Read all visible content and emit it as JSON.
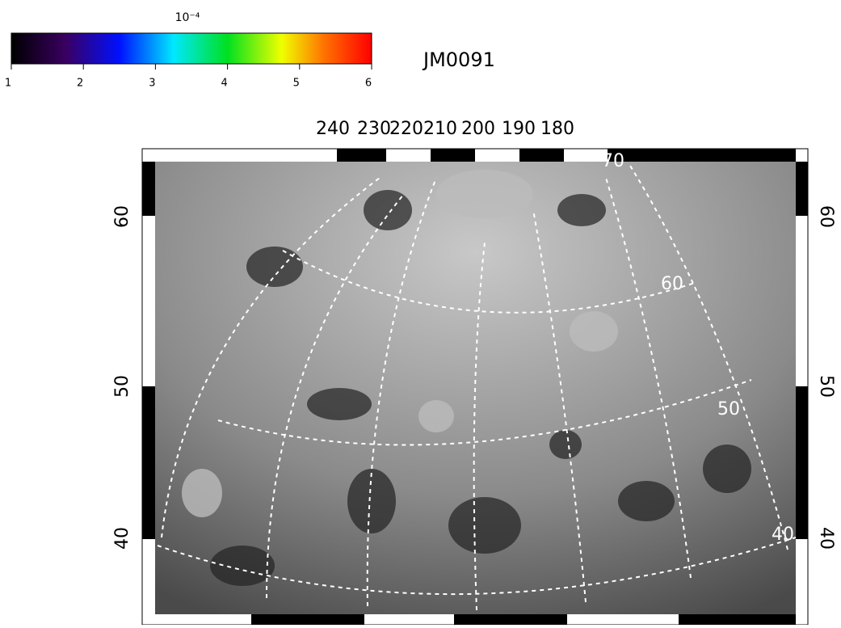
{
  "colorbar": {
    "exponent": "10⁻⁴",
    "ticks": [
      "1",
      "2",
      "3",
      "4",
      "5",
      "6"
    ]
  },
  "title": "JM0091",
  "top_axis": [
    "240",
    "230",
    "220",
    "210",
    "200",
    "190",
    "180"
  ],
  "left_axis": [
    "60",
    "50",
    "40"
  ],
  "right_axis": [
    "60",
    "50",
    "40"
  ],
  "grid_labels": [
    "70",
    "60",
    "50",
    "40"
  ]
}
